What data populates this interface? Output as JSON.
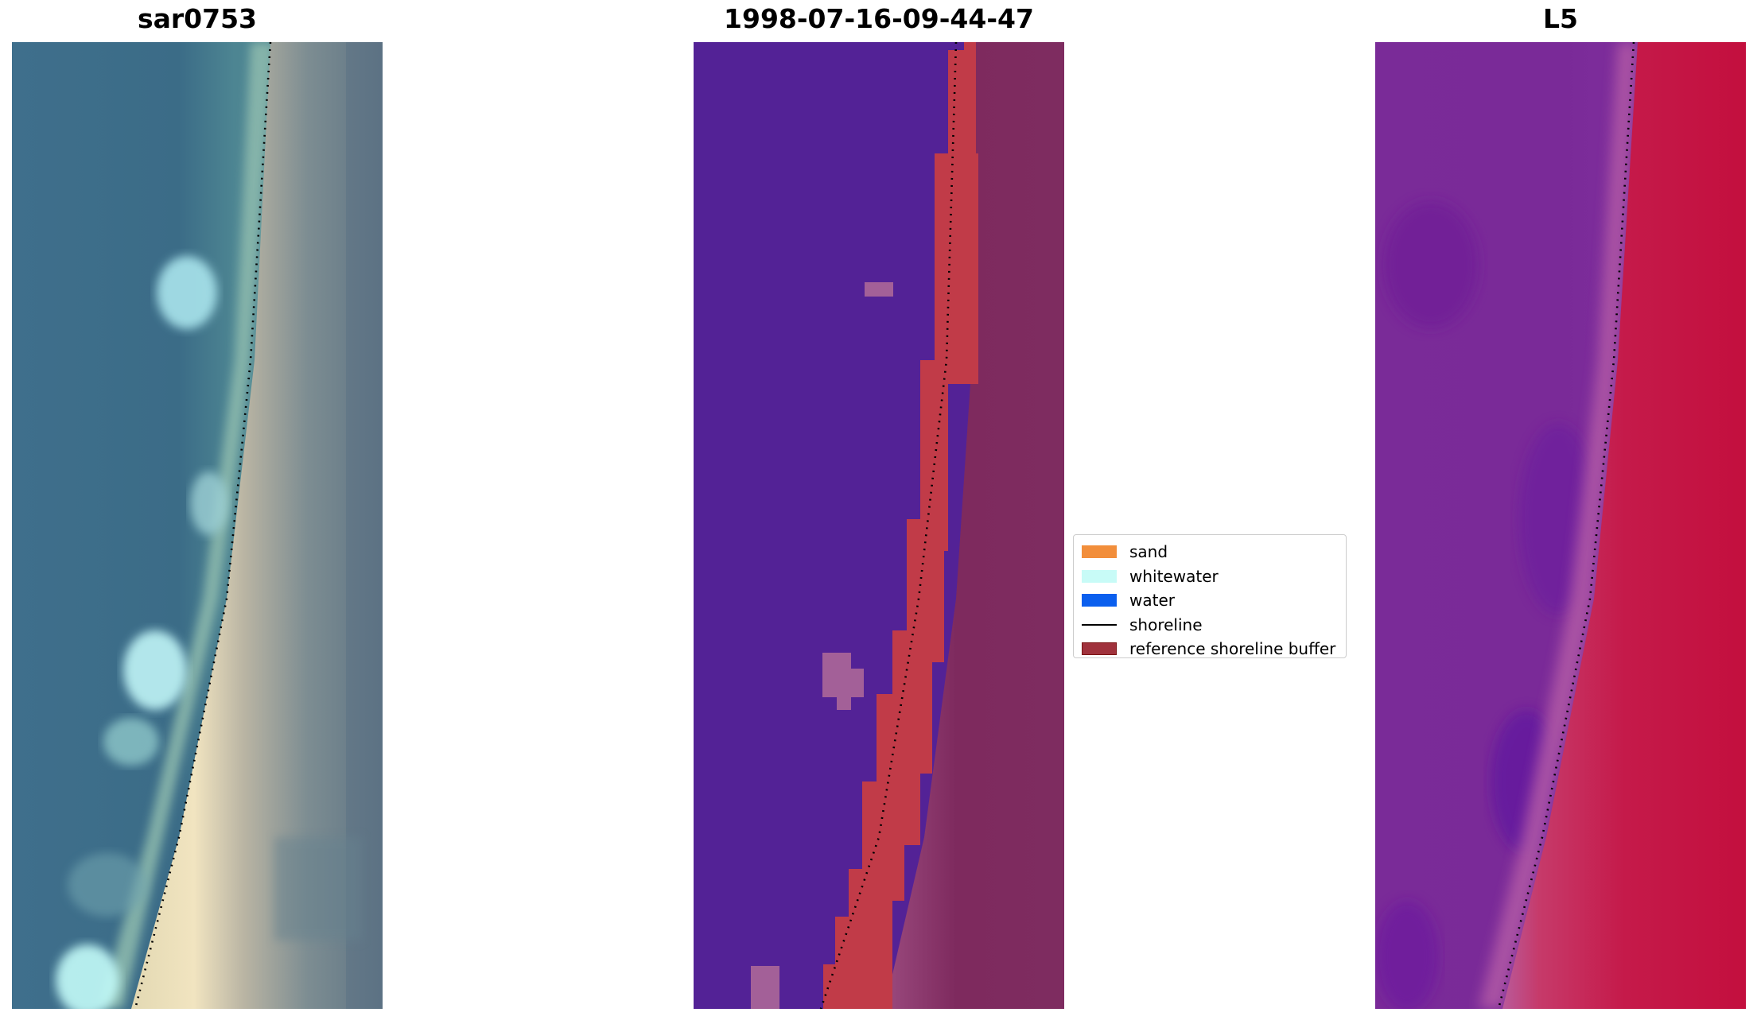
{
  "panels": {
    "rgb": {
      "title": "sar0753"
    },
    "classified": {
      "title": "1998-07-16-09-44-47"
    },
    "index": {
      "title": "L5"
    }
  },
  "legend": {
    "items": [
      {
        "label": "sand",
        "color": "#f28e3b",
        "kind": "patch"
      },
      {
        "label": "whitewater",
        "color": "#c8fbf7",
        "kind": "patch"
      },
      {
        "label": "water",
        "color": "#0b5fee",
        "kind": "patch"
      },
      {
        "label": "shoreline",
        "color": "#000000",
        "kind": "line"
      },
      {
        "label": "reference shoreline buffer",
        "color": "#a0323c",
        "kind": "outlined-patch"
      }
    ]
  },
  "colors": {
    "classified_water": "#532296",
    "classified_buffer": "#c13b48",
    "classified_land": "#7a2a5f",
    "index_purple": "#7a2a98",
    "index_red": "#c3123f",
    "rgb_water": "#3d6f8d",
    "rgb_sand": "#e8dcb4",
    "rgb_land": "#7d8f95"
  }
}
